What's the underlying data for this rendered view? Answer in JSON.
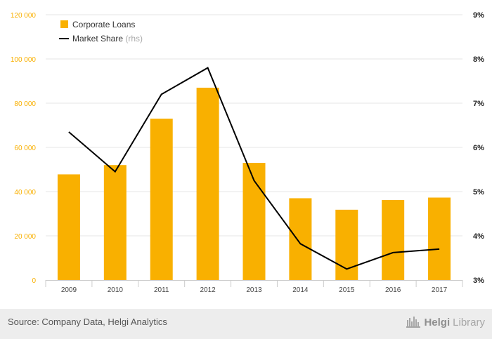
{
  "chart_data": {
    "type": "bar+line",
    "categories": [
      "2009",
      "2010",
      "2011",
      "2012",
      "2013",
      "2014",
      "2015",
      "2016",
      "2017"
    ],
    "series": [
      {
        "name": "Corporate Loans",
        "type": "bar",
        "axis": "left",
        "color": "#f9b000",
        "values": [
          47800,
          52000,
          73000,
          87000,
          53000,
          37000,
          31800,
          36200,
          37300
        ]
      },
      {
        "name": "Market Share",
        "suffix": "(rhs)",
        "type": "line",
        "axis": "right",
        "color": "#000000",
        "values": [
          6.35,
          5.45,
          7.2,
          7.8,
          5.25,
          3.82,
          3.25,
          3.62,
          3.7
        ]
      }
    ],
    "left_axis": {
      "min": 0,
      "max": 120000,
      "ticks": [
        "0",
        "20 000",
        "40 000",
        "60 000",
        "80 000",
        "100 000",
        "120 000"
      ],
      "tick_values": [
        0,
        20000,
        40000,
        60000,
        80000,
        100000,
        120000
      ],
      "color": "#f9b000"
    },
    "right_axis": {
      "min": 3,
      "max": 9,
      "ticks": [
        "3%",
        "4%",
        "5%",
        "6%",
        "7%",
        "8%",
        "9%"
      ],
      "tick_values": [
        3,
        4,
        5,
        6,
        7,
        8,
        9
      ]
    },
    "grid": true,
    "legend_position": "top-left"
  },
  "footer": {
    "source": "Source: Company Data, Helgi Analytics",
    "brand_bold": "Helgi",
    "brand_light": "Library"
  }
}
